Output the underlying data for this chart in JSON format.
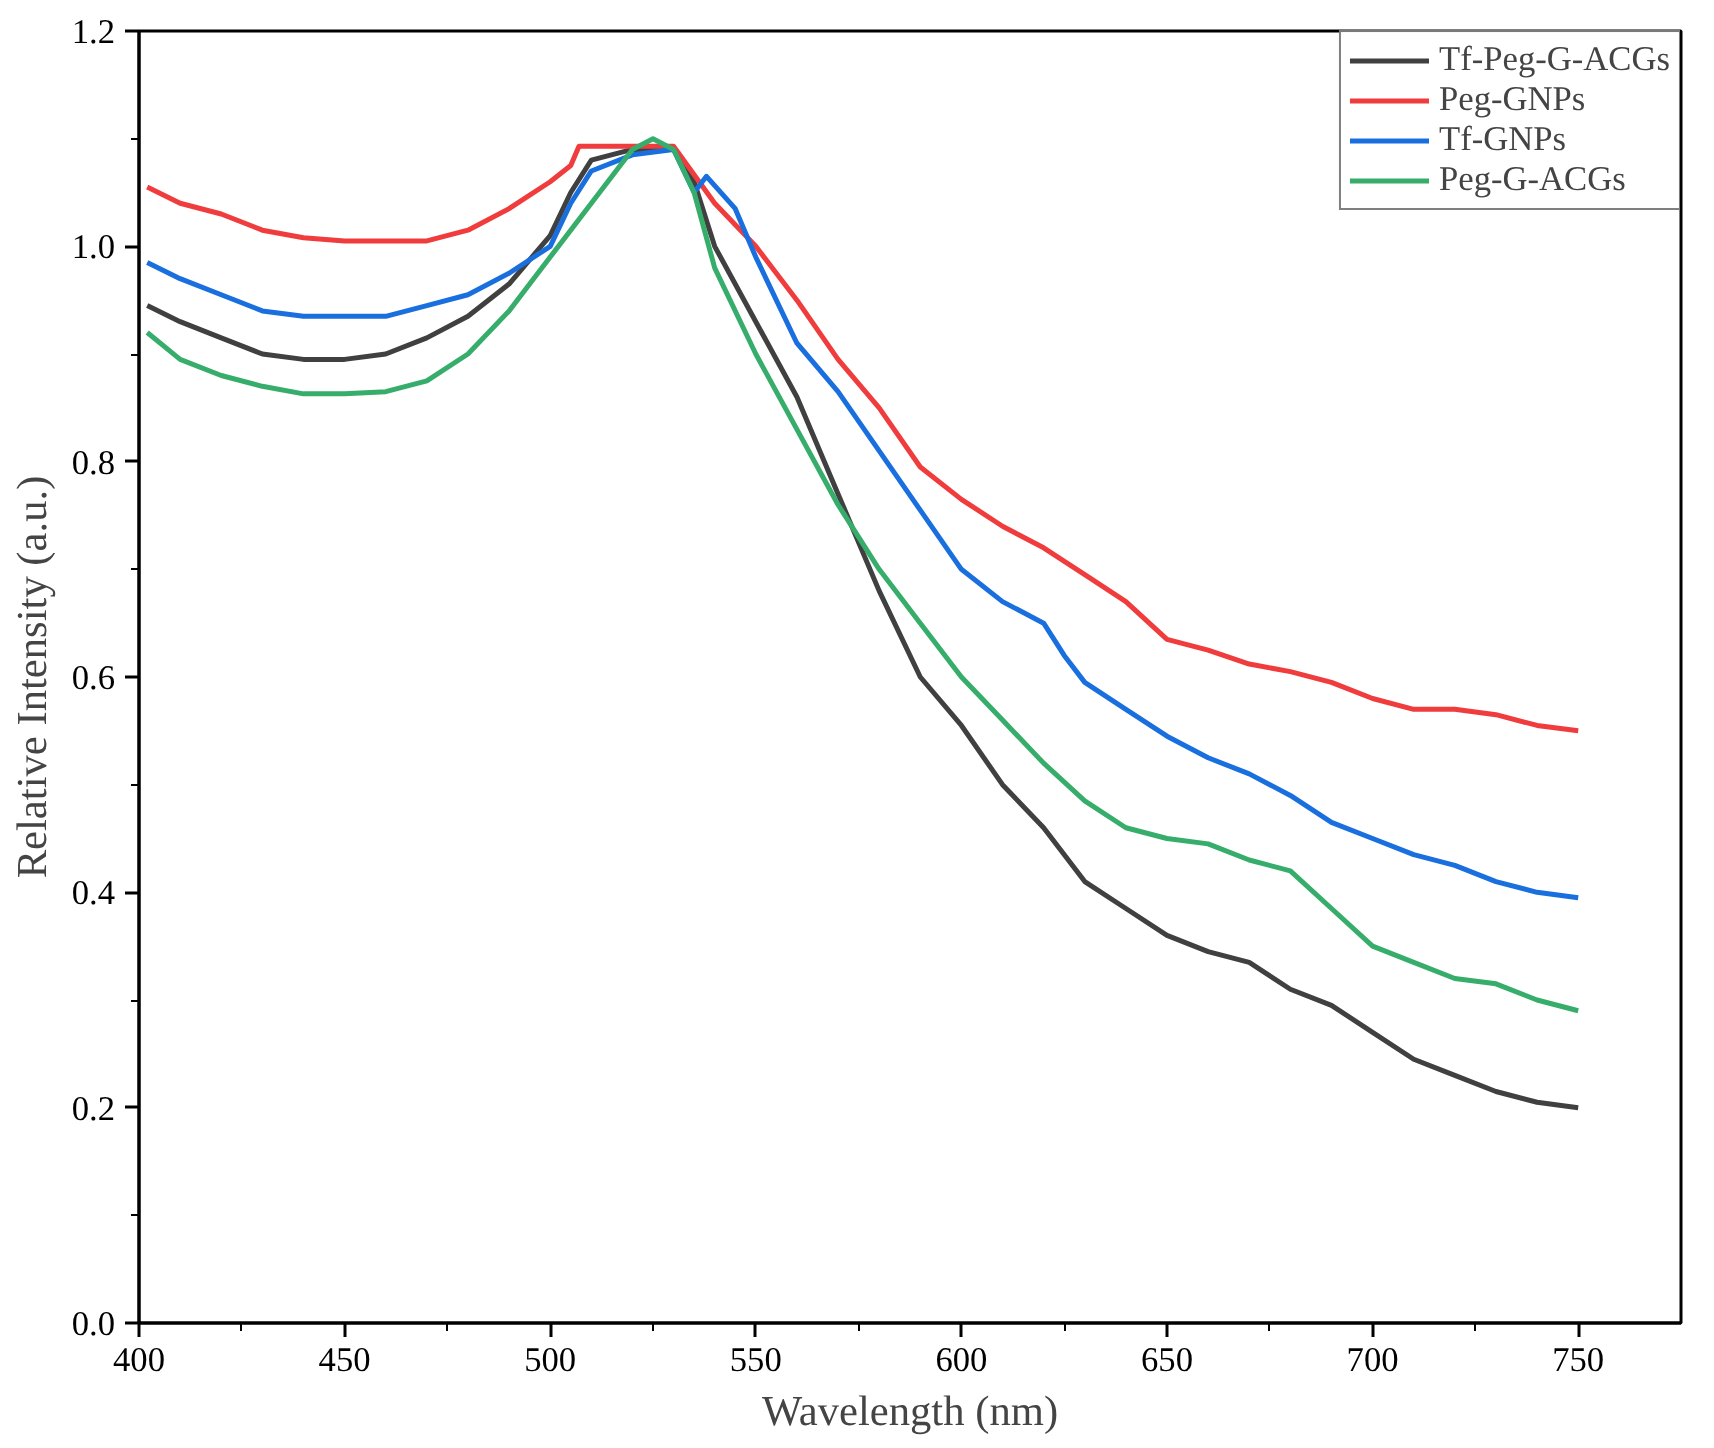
{
  "chart_data": {
    "type": "line",
    "xlabel": "Wavelength (nm)",
    "ylabel": "Relative Intensity (a.u.)",
    "xlim": [
      400,
      775
    ],
    "ylim": [
      0,
      1.2
    ],
    "xticks": [
      400,
      450,
      500,
      550,
      600,
      650,
      700,
      750
    ],
    "yticks": [
      {
        "value": 0,
        "label": "0.0"
      },
      0.2,
      0.4,
      0.6,
      0.8,
      {
        "value": 1,
        "label": "1.0"
      },
      1.2
    ],
    "grid": false,
    "legend": "top right",
    "marker": "none",
    "line_style": "solid",
    "series": [
      {
        "name": "Tf-Peg-G-ACGs",
        "color": "#404040",
        "x": [
          402,
          410,
          420,
          430,
          440,
          450,
          460,
          470,
          480,
          490,
          500,
          505,
          510,
          520,
          530,
          535,
          540,
          550,
          560,
          570,
          580,
          590,
          600,
          610,
          620,
          630,
          640,
          650,
          660,
          670,
          680,
          690,
          700,
          710,
          720,
          730,
          740,
          750
        ],
        "values": [
          0.945,
          0.93,
          0.915,
          0.9,
          0.895,
          0.895,
          0.9,
          0.915,
          0.935,
          0.965,
          1.01,
          1.05,
          1.08,
          1.09,
          1.09,
          1.06,
          1.0,
          0.93,
          0.86,
          0.77,
          0.68,
          0.6,
          0.555,
          0.5,
          0.46,
          0.41,
          0.385,
          0.36,
          0.345,
          0.335,
          0.31,
          0.295,
          0.27,
          0.245,
          0.23,
          0.215,
          0.205,
          0.2
        ]
      },
      {
        "name": "Peg-GNPs",
        "color": "#f03c3c",
        "x": [
          402,
          410,
          420,
          430,
          440,
          450,
          460,
          470,
          480,
          490,
          500,
          505,
          507,
          520,
          530,
          540,
          550,
          560,
          570,
          580,
          590,
          600,
          610,
          620,
          630,
          640,
          650,
          660,
          670,
          680,
          690,
          700,
          710,
          720,
          730,
          740,
          750
        ],
        "values": [
          1.055,
          1.04,
          1.03,
          1.015,
          1.008,
          1.005,
          1.005,
          1.005,
          1.015,
          1.035,
          1.06,
          1.075,
          1.093,
          1.093,
          1.093,
          1.04,
          1.0,
          0.95,
          0.895,
          0.85,
          0.795,
          0.765,
          0.74,
          0.72,
          0.695,
          0.67,
          0.635,
          0.625,
          0.612,
          0.605,
          0.595,
          0.58,
          0.57,
          0.57,
          0.565,
          0.555,
          0.55
        ]
      },
      {
        "name": "Tf-GNPs",
        "color": "#1a6fdf",
        "x": [
          402,
          410,
          420,
          430,
          440,
          450,
          460,
          470,
          480,
          490,
          500,
          505,
          510,
          520,
          530,
          535,
          538,
          545,
          550,
          560,
          570,
          580,
          590,
          600,
          610,
          620,
          625,
          630,
          640,
          650,
          660,
          670,
          680,
          690,
          700,
          710,
          720,
          730,
          740,
          750
        ],
        "values": [
          0.985,
          0.97,
          0.955,
          0.94,
          0.935,
          0.935,
          0.935,
          0.945,
          0.955,
          0.975,
          1.0,
          1.04,
          1.07,
          1.085,
          1.09,
          1.05,
          1.065,
          1.035,
          0.99,
          0.91,
          0.865,
          0.81,
          0.755,
          0.7,
          0.67,
          0.65,
          0.62,
          0.595,
          0.57,
          0.545,
          0.525,
          0.51,
          0.49,
          0.465,
          0.45,
          0.435,
          0.425,
          0.41,
          0.4,
          0.395
        ]
      },
      {
        "name": "Peg-G-ACGs",
        "color": "#37ad6b",
        "x": [
          402,
          410,
          420,
          430,
          440,
          450,
          460,
          470,
          480,
          490,
          500,
          510,
          520,
          525,
          530,
          535,
          540,
          550,
          560,
          570,
          580,
          590,
          600,
          610,
          620,
          630,
          640,
          650,
          660,
          670,
          680,
          690,
          700,
          710,
          720,
          730,
          740,
          750
        ],
        "values": [
          0.92,
          0.895,
          0.88,
          0.87,
          0.863,
          0.863,
          0.865,
          0.875,
          0.9,
          0.94,
          0.99,
          1.04,
          1.09,
          1.1,
          1.09,
          1.05,
          0.98,
          0.9,
          0.83,
          0.76,
          0.7,
          0.65,
          0.6,
          0.56,
          0.52,
          0.485,
          0.46,
          0.45,
          0.445,
          0.43,
          0.42,
          0.385,
          0.35,
          0.335,
          0.32,
          0.315,
          0.3,
          0.29
        ]
      }
    ]
  }
}
